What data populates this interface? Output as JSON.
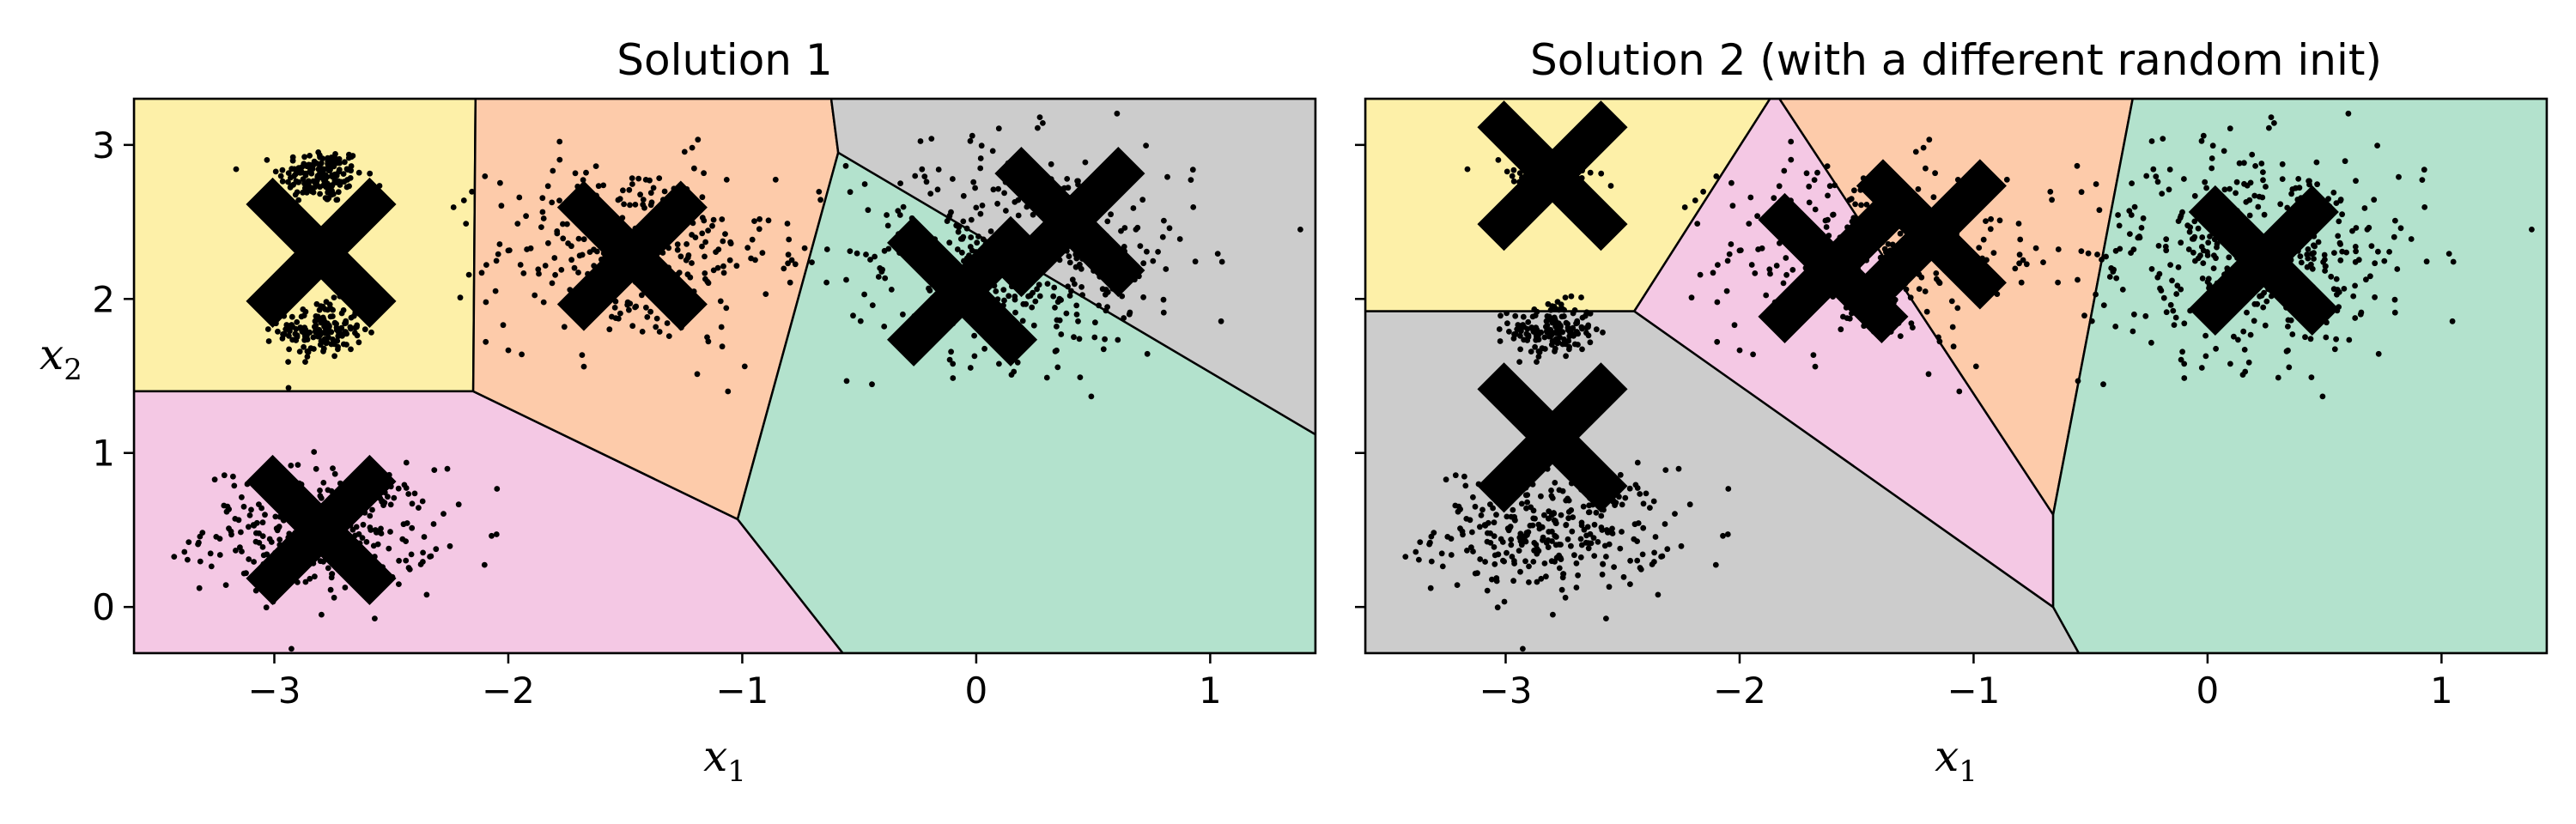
{
  "chart_data": [
    {
      "type": "scatter",
      "title": "Solution 1",
      "xlabel": "x",
      "xlabel_sub": "1",
      "ylabel": "x",
      "ylabel_sub": "2",
      "xlim": [
        -3.6,
        1.45
      ],
      "ylim": [
        -0.3,
        3.3
      ],
      "xticks": [
        -3,
        -2,
        -1,
        0,
        1
      ],
      "yticks": [
        0,
        1,
        2,
        3
      ],
      "xtick_labels": [
        "−3",
        "−2",
        "−1",
        "0",
        "1"
      ],
      "ytick_labels": [
        "0",
        "1",
        "2",
        "3"
      ],
      "regions": [
        {
          "color": "#fdf0a8",
          "polygon": [
            [
              -3.6,
              1.4
            ],
            [
              -2.15,
              1.4
            ],
            [
              -2.14,
              3.3
            ],
            [
              -3.6,
              3.3
            ]
          ]
        },
        {
          "color": "#f4c8e4",
          "polygon": [
            [
              -3.6,
              -0.3
            ],
            [
              -0.57,
              -0.3
            ],
            [
              -1.02,
              0.57
            ],
            [
              -2.15,
              1.4
            ],
            [
              -3.6,
              1.4
            ]
          ]
        },
        {
          "color": "#fdcbaa",
          "polygon": [
            [
              -2.15,
              1.4
            ],
            [
              -1.02,
              0.57
            ],
            [
              -0.59,
              2.95
            ],
            [
              -0.62,
              3.3
            ],
            [
              -2.14,
              3.3
            ]
          ]
        },
        {
          "color": "#b3e2cd",
          "polygon": [
            [
              -1.02,
              0.57
            ],
            [
              -0.57,
              -0.3
            ],
            [
              1.45,
              -0.3
            ],
            [
              1.45,
              1.12
            ],
            [
              -0.59,
              2.95
            ]
          ]
        },
        {
          "color": "#cccccc",
          "polygon": [
            [
              -0.62,
              3.3
            ],
            [
              1.45,
              3.3
            ],
            [
              1.45,
              1.12
            ],
            [
              -0.59,
              2.95
            ]
          ]
        }
      ],
      "centroids": [
        [
          -2.8,
          2.3
        ],
        [
          -2.8,
          0.5
        ],
        [
          -1.47,
          2.28
        ],
        [
          0.4,
          2.5
        ],
        [
          -0.06,
          2.05
        ]
      ],
      "clusters": [
        {
          "center": [
            -2.8,
            2.8
          ],
          "std": [
            0.09,
            0.09
          ],
          "n": 160
        },
        {
          "center": [
            -2.8,
            1.8
          ],
          "std": [
            0.09,
            0.09
          ],
          "n": 160
        },
        {
          "center": [
            -2.8,
            0.5
          ],
          "std": [
            0.25,
            0.2
          ],
          "n": 320
        },
        {
          "center": [
            -1.47,
            2.3
          ],
          "std": [
            0.3,
            0.3
          ],
          "n": 320
        },
        {
          "center": [
            0.2,
            2.3
          ],
          "std": [
            0.37,
            0.35
          ],
          "n": 420
        }
      ]
    },
    {
      "type": "scatter",
      "title": "Solution 2 (with a different random init)",
      "xlabel": "x",
      "xlabel_sub": "1",
      "xlim": [
        -3.6,
        1.45
      ],
      "ylim": [
        -0.3,
        3.3
      ],
      "xticks": [
        -3,
        -2,
        -1,
        0,
        1
      ],
      "yticks": [
        0,
        1,
        2,
        3
      ],
      "xtick_labels": [
        "−3",
        "−2",
        "−1",
        "0",
        "1"
      ],
      "ytick_labels": [],
      "regions": [
        {
          "color": "#fdf0a8",
          "polygon": [
            [
              -3.6,
              1.92
            ],
            [
              -2.45,
              1.92
            ],
            [
              -1.87,
              3.3
            ],
            [
              -3.6,
              3.3
            ]
          ]
        },
        {
          "color": "#cccccc",
          "polygon": [
            [
              -3.6,
              -0.3
            ],
            [
              -0.55,
              -0.3
            ],
            [
              -0.66,
              0.0
            ],
            [
              -2.45,
              1.92
            ],
            [
              -3.6,
              1.92
            ]
          ]
        },
        {
          "color": "#f4c8e4",
          "polygon": [
            [
              -2.45,
              1.92
            ],
            [
              -0.66,
              0.0
            ],
            [
              -0.66,
              0.6
            ],
            [
              -1.83,
              3.3
            ],
            [
              -1.87,
              3.3
            ]
          ]
        },
        {
          "color": "#fdcbaa",
          "polygon": [
            [
              -0.66,
              0.6
            ],
            [
              -1.83,
              3.3
            ],
            [
              -0.32,
              3.3
            ]
          ]
        },
        {
          "color": "#b3e2cd",
          "polygon": [
            [
              -0.55,
              -0.3
            ],
            [
              1.45,
              -0.3
            ],
            [
              1.45,
              3.3
            ],
            [
              -0.32,
              3.3
            ],
            [
              -0.66,
              0.6
            ],
            [
              -0.66,
              0.0
            ]
          ]
        }
      ],
      "centroids": [
        [
          -2.8,
          2.8
        ],
        [
          -2.8,
          1.1
        ],
        [
          -1.6,
          2.2
        ],
        [
          -1.18,
          2.42
        ],
        [
          0.24,
          2.25
        ]
      ],
      "clusters": [
        {
          "center": [
            -2.8,
            2.8
          ],
          "std": [
            0.09,
            0.09
          ],
          "n": 160
        },
        {
          "center": [
            -2.8,
            1.8
          ],
          "std": [
            0.09,
            0.09
          ],
          "n": 160
        },
        {
          "center": [
            -2.8,
            0.5
          ],
          "std": [
            0.25,
            0.2
          ],
          "n": 320
        },
        {
          "center": [
            -1.47,
            2.3
          ],
          "std": [
            0.3,
            0.3
          ],
          "n": 320
        },
        {
          "center": [
            0.2,
            2.3
          ],
          "std": [
            0.37,
            0.35
          ],
          "n": 420
        }
      ]
    }
  ]
}
